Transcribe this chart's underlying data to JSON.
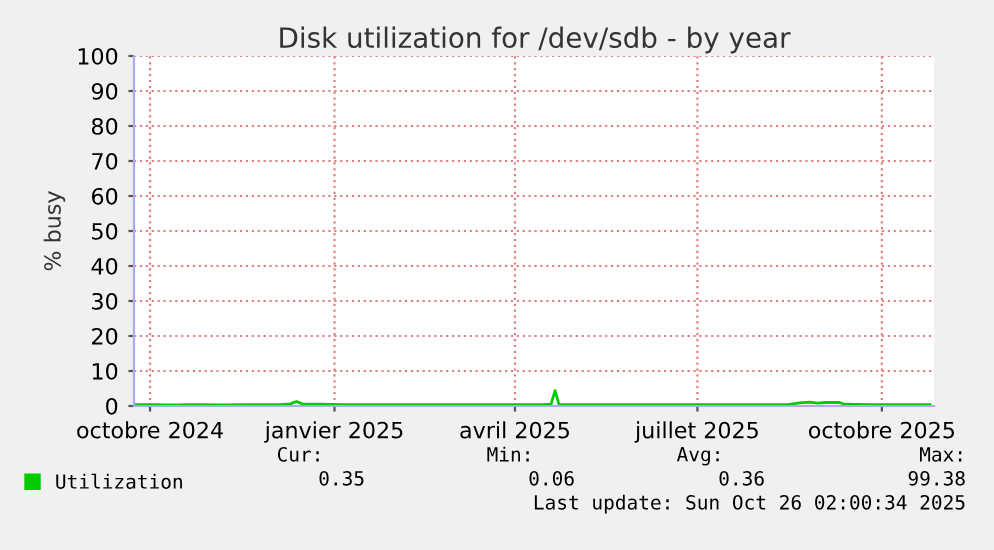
{
  "chart_data": {
    "type": "line",
    "title": "Disk utilization for /dev/sdb - by year",
    "ylabel": "% busy",
    "x": [
      "2024-09-24",
      "2024-09-29",
      "2024-10-01",
      "2024-10-04",
      "2024-10-08",
      "2024-10-15",
      "2024-10-20",
      "2024-10-26",
      "2024-11-05",
      "2024-11-20",
      "2024-12-05",
      "2024-12-10",
      "2024-12-13",
      "2024-12-16",
      "2024-12-25",
      "2025-01-05",
      "2025-01-20",
      "2025-02-01",
      "2025-02-15",
      "2025-03-01",
      "2025-03-15",
      "2025-04-01",
      "2025-04-15",
      "2025-04-19",
      "2025-04-21",
      "2025-04-23",
      "2025-05-01",
      "2025-05-05",
      "2025-05-20",
      "2025-06-05",
      "2025-06-20",
      "2025-07-01",
      "2025-07-15",
      "2025-08-01",
      "2025-08-15",
      "2025-08-21",
      "2025-08-26",
      "2025-08-30",
      "2025-09-03",
      "2025-09-10",
      "2025-09-12",
      "2025-09-25",
      "2025-10-10",
      "2025-10-25"
    ],
    "series": [
      {
        "name": "Utilization",
        "color": "#00cc00",
        "values": [
          0.4,
          0.4,
          0.4,
          0.4,
          0.3,
          0.3,
          0.4,
          0.4,
          0.3,
          0.4,
          0.4,
          0.6,
          1.3,
          0.6,
          0.5,
          0.4,
          0.4,
          0.4,
          0.4,
          0.4,
          0.4,
          0.4,
          0.4,
          0.5,
          4.4,
          0.4,
          0.4,
          0.4,
          0.4,
          0.4,
          0.4,
          0.4,
          0.4,
          0.4,
          0.4,
          0.9,
          1.1,
          0.8,
          1.0,
          1.0,
          0.5,
          0.4,
          0.4,
          0.4
        ]
      }
    ],
    "xlim": [
      "2024-09-23",
      "2025-10-27"
    ],
    "xticks": [
      {
        "value": "2024-10-01",
        "label": "octobre 2024"
      },
      {
        "value": "2025-01-01",
        "label": "janvier 2025"
      },
      {
        "value": "2025-04-01",
        "label": "avril 2025"
      },
      {
        "value": "2025-07-01",
        "label": "juillet 2025"
      },
      {
        "value": "2025-10-01",
        "label": "octobre 2025"
      }
    ],
    "ylim": [
      0,
      100
    ],
    "yticks": [
      0,
      10,
      20,
      30,
      40,
      50,
      60,
      70,
      80,
      90,
      100
    ],
    "grid": true,
    "legend": "bottom",
    "marker": "none",
    "line_style": "solid",
    "annotations": [
      "Cur:",
      "Min:",
      "Avg:",
      "Max:",
      "0.35",
      "0.06",
      "0.36",
      "99.38",
      "Last update: Sun Oct 26 02:00:34 2025"
    ]
  }
}
